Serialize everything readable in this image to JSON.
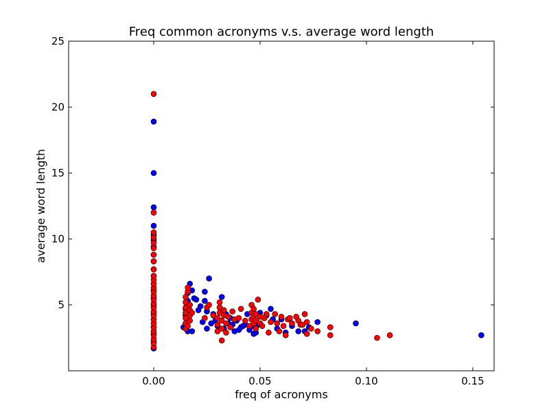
{
  "chart_data": {
    "type": "scatter",
    "title": "Freq common acronyms v.s. average word length",
    "xlabel": "freq of acronyms",
    "ylabel": "average word length",
    "xlim": [
      -0.04,
      0.16
    ],
    "ylim": [
      0,
      25
    ],
    "x_ticks": [
      0.0,
      0.05,
      0.1,
      0.15
    ],
    "x_tick_labels": [
      "0.00",
      "0.05",
      "0.10",
      "0.15"
    ],
    "y_ticks": [
      5,
      10,
      15,
      20,
      25
    ],
    "y_tick_labels": [
      "5",
      "10",
      "15",
      "20",
      "25"
    ],
    "grid": false,
    "legend": "none",
    "colors": {
      "series_a": "#0000ff",
      "series_b": "#ff0000",
      "marker_edge": "#000000"
    },
    "series": [
      {
        "points": [
          [
            0,
            1.7
          ],
          [
            0,
            2.2
          ],
          [
            0,
            2.8
          ],
          [
            0,
            3.3
          ],
          [
            0,
            3.9
          ],
          [
            0,
            4.4
          ],
          [
            0,
            5.0
          ],
          [
            0,
            5.5
          ],
          [
            0,
            6.1
          ],
          [
            0,
            6.6
          ],
          [
            0,
            7.2
          ],
          [
            0,
            7.7
          ],
          [
            0,
            8.3
          ],
          [
            0,
            8.8
          ],
          [
            0,
            9.4
          ],
          [
            0,
            9.9
          ],
          [
            0,
            10.3
          ],
          [
            0,
            11.0
          ],
          [
            0,
            12.4
          ],
          [
            0,
            15.0
          ],
          [
            0,
            18.9
          ],
          [
            0.014,
            3.3
          ],
          [
            0.015,
            3.6
          ],
          [
            0.015,
            4.2
          ],
          [
            0.015,
            4.7
          ],
          [
            0.016,
            5.3
          ],
          [
            0.016,
            5.9
          ],
          [
            0.016,
            3.0
          ],
          [
            0.017,
            4.4
          ],
          [
            0.017,
            6.6
          ],
          [
            0.018,
            3.0
          ],
          [
            0.018,
            6.1
          ],
          [
            0.019,
            5.5
          ],
          [
            0.02,
            5.4
          ],
          [
            0.021,
            4.6
          ],
          [
            0.022,
            4.9
          ],
          [
            0.023,
            3.7
          ],
          [
            0.024,
            6.0
          ],
          [
            0.024,
            5.3
          ],
          [
            0.025,
            3.2
          ],
          [
            0.025,
            4.5
          ],
          [
            0.026,
            7.0
          ],
          [
            0.027,
            3.6
          ],
          [
            0.028,
            4.3
          ],
          [
            0.029,
            3.8
          ],
          [
            0.03,
            3.4
          ],
          [
            0.031,
            4.8
          ],
          [
            0.032,
            5.6
          ],
          [
            0.033,
            3.2
          ],
          [
            0.034,
            4.3
          ],
          [
            0.035,
            3.6
          ],
          [
            0.036,
            4.0
          ],
          [
            0.037,
            3.5
          ],
          [
            0.038,
            3.0
          ],
          [
            0.039,
            3.8
          ],
          [
            0.04,
            3.1
          ],
          [
            0.041,
            3.3
          ],
          [
            0.042,
            3.4
          ],
          [
            0.043,
            3.5
          ],
          [
            0.044,
            4.3
          ],
          [
            0.045,
            3.1
          ],
          [
            0.046,
            3.4
          ],
          [
            0.047,
            2.8
          ],
          [
            0.048,
            2.9
          ],
          [
            0.049,
            3.5
          ],
          [
            0.05,
            4.4
          ],
          [
            0.052,
            4.0
          ],
          [
            0.053,
            4.2
          ],
          [
            0.055,
            4.7
          ],
          [
            0.056,
            3.9
          ],
          [
            0.058,
            3.2
          ],
          [
            0.06,
            3.9
          ],
          [
            0.062,
            2.9
          ],
          [
            0.065,
            3.4
          ],
          [
            0.068,
            3.0
          ],
          [
            0.071,
            3.0
          ],
          [
            0.073,
            3.3
          ],
          [
            0.077,
            3.7
          ],
          [
            0.095,
            3.6
          ],
          [
            0.154,
            2.7
          ]
        ]
      },
      {
        "points": [
          [
            0,
            1.8
          ],
          [
            0,
            2.1
          ],
          [
            0,
            2.4
          ],
          [
            0,
            2.7
          ],
          [
            0,
            3.0
          ],
          [
            0,
            3.3
          ],
          [
            0,
            3.6
          ],
          [
            0,
            3.9
          ],
          [
            0,
            4.2
          ],
          [
            0,
            4.5
          ],
          [
            0,
            4.8
          ],
          [
            0,
            5.1
          ],
          [
            0,
            5.4
          ],
          [
            0,
            5.7
          ],
          [
            0,
            6.0
          ],
          [
            0,
            6.3
          ],
          [
            0,
            6.6
          ],
          [
            0,
            6.9
          ],
          [
            0,
            7.2
          ],
          [
            0,
            7.7
          ],
          [
            0,
            8.3
          ],
          [
            0,
            8.8
          ],
          [
            0,
            9.3
          ],
          [
            0,
            9.7
          ],
          [
            0,
            10.1
          ],
          [
            0,
            10.5
          ],
          [
            0,
            12.0
          ],
          [
            0,
            21.0
          ],
          [
            0.015,
            3.2
          ],
          [
            0.015,
            3.6
          ],
          [
            0.015,
            4.0
          ],
          [
            0.015,
            4.4
          ],
          [
            0.015,
            4.8
          ],
          [
            0.015,
            5.2
          ],
          [
            0.015,
            5.6
          ],
          [
            0.016,
            6.0
          ],
          [
            0.016,
            6.3
          ],
          [
            0.016,
            3.4
          ],
          [
            0.017,
            3.8
          ],
          [
            0.017,
            4.2
          ],
          [
            0.017,
            4.6
          ],
          [
            0.017,
            5.0
          ],
          [
            0.018,
            4.4
          ],
          [
            0.024,
            4.0
          ],
          [
            0.025,
            4.8
          ],
          [
            0.026,
            5.0
          ],
          [
            0.028,
            4.2
          ],
          [
            0.03,
            3.0
          ],
          [
            0.03,
            3.5
          ],
          [
            0.03,
            4.0
          ],
          [
            0.031,
            4.4
          ],
          [
            0.031,
            4.8
          ],
          [
            0.031,
            5.2
          ],
          [
            0.032,
            2.3
          ],
          [
            0.032,
            3.2
          ],
          [
            0.032,
            3.8
          ],
          [
            0.033,
            4.2
          ],
          [
            0.033,
            4.6
          ],
          [
            0.034,
            2.9
          ],
          [
            0.034,
            3.6
          ],
          [
            0.035,
            4.1
          ],
          [
            0.036,
            3.3
          ],
          [
            0.037,
            4.5
          ],
          [
            0.038,
            3.9
          ],
          [
            0.04,
            4.0
          ],
          [
            0.041,
            4.7
          ],
          [
            0.043,
            3.8
          ],
          [
            0.045,
            3.4
          ],
          [
            0.046,
            3.9
          ],
          [
            0.046,
            4.4
          ],
          [
            0.046,
            5.0
          ],
          [
            0.047,
            3.6
          ],
          [
            0.047,
            4.1
          ],
          [
            0.047,
            4.7
          ],
          [
            0.048,
            3.2
          ],
          [
            0.048,
            3.8
          ],
          [
            0.048,
            4.3
          ],
          [
            0.049,
            5.4
          ],
          [
            0.05,
            3.6
          ],
          [
            0.05,
            4.1
          ],
          [
            0.051,
            3.4
          ],
          [
            0.052,
            4.0
          ],
          [
            0.053,
            4.3
          ],
          [
            0.054,
            2.9
          ],
          [
            0.055,
            3.7
          ],
          [
            0.057,
            4.3
          ],
          [
            0.058,
            3.6
          ],
          [
            0.059,
            3.0
          ],
          [
            0.06,
            4.1
          ],
          [
            0.061,
            3.4
          ],
          [
            0.062,
            2.7
          ],
          [
            0.063,
            3.9
          ],
          [
            0.064,
            4.0
          ],
          [
            0.065,
            3.6
          ],
          [
            0.067,
            4.1
          ],
          [
            0.068,
            3.8
          ],
          [
            0.069,
            3.5
          ],
          [
            0.07,
            3.5
          ],
          [
            0.071,
            4.3
          ],
          [
            0.072,
            2.8
          ],
          [
            0.072,
            3.7
          ],
          [
            0.074,
            3.2
          ],
          [
            0.077,
            3.0
          ],
          [
            0.083,
            3.3
          ],
          [
            0.083,
            2.7
          ],
          [
            0.105,
            2.5
          ],
          [
            0.111,
            2.7
          ]
        ]
      }
    ]
  }
}
